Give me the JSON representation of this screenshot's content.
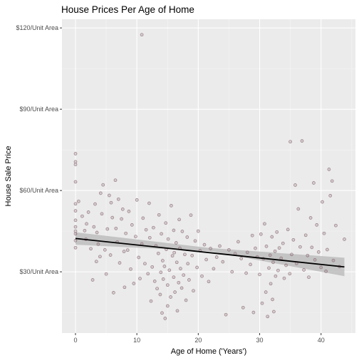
{
  "chart_data": {
    "type": "scatter",
    "title": "House Prices Per Age of Home",
    "xlabel": "Age of Home ('Years')",
    "ylabel": "House Sale Price",
    "xlim": [
      -2.2,
      45.6
    ],
    "ylim": [
      7.4,
      123.2
    ],
    "x_ticks": [
      0,
      10,
      20,
      30,
      40
    ],
    "x_tick_labels": [
      "0",
      "10",
      "20",
      "30",
      "40"
    ],
    "y_ticks": [
      30,
      60,
      90,
      120
    ],
    "y_tick_labels": [
      "$30/Unit Area",
      "$60/Unit Area",
      "$90/Unit Area",
      "$120/Unit Area"
    ],
    "grid": true,
    "point_color": "#8b6b73",
    "trend_line": {
      "type": "linear",
      "x_range": [
        0,
        43.8
      ],
      "y_start": 42.3,
      "y_end": 31.8,
      "ci_lower_start": 40.0,
      "ci_upper_start": 44.6,
      "ci_lower_mid": 37.6,
      "ci_upper_mid": 38.8,
      "ci_lower_end": 28.4,
      "ci_upper_end": 35.2,
      "line_color": "#000000",
      "band_color": "#bdbdbd"
    },
    "points": [
      [
        0,
        73.6
      ],
      [
        0,
        70.6
      ],
      [
        0,
        69.6
      ],
      [
        0,
        63.2
      ],
      [
        0,
        55.1
      ],
      [
        0,
        52.5
      ],
      [
        0,
        46.6
      ],
      [
        0,
        45.0
      ],
      [
        0,
        44.0
      ],
      [
        0,
        41.5
      ],
      [
        0,
        38.9
      ],
      [
        0,
        49.0
      ],
      [
        0.5,
        56.0
      ],
      [
        1.1,
        50.5
      ],
      [
        1.5,
        45.2
      ],
      [
        1.7,
        42.0
      ],
      [
        1.8,
        47.7
      ],
      [
        2.1,
        52.0
      ],
      [
        2.5,
        38.5
      ],
      [
        2.8,
        27.0
      ],
      [
        3.0,
        46.6
      ],
      [
        3.2,
        55.0
      ],
      [
        3.4,
        33.8
      ],
      [
        3.5,
        44.5
      ],
      [
        3.7,
        40.2
      ],
      [
        4.0,
        35.6
      ],
      [
        4.1,
        59.0
      ],
      [
        4.3,
        51.4
      ],
      [
        4.5,
        62.1
      ],
      [
        4.8,
        38.1
      ],
      [
        5.0,
        29.2
      ],
      [
        5.2,
        45.8
      ],
      [
        5.5,
        58.2
      ],
      [
        5.7,
        36.2
      ],
      [
        5.8,
        55.5
      ],
      [
        6.0,
        50.0
      ],
      [
        6.2,
        22.3
      ],
      [
        6.5,
        63.8
      ],
      [
        6.6,
        46.0
      ],
      [
        6.8,
        41.0
      ],
      [
        7.0,
        56.8
      ],
      [
        7.2,
        33.3
      ],
      [
        7.5,
        49.5
      ],
      [
        7.7,
        53.1
      ],
      [
        7.9,
        37.5
      ],
      [
        8.0,
        24.3
      ],
      [
        8.2,
        44.2
      ],
      [
        8.5,
        38.0
      ],
      [
        8.7,
        52.3
      ],
      [
        9.0,
        31.0
      ],
      [
        9.2,
        47.3
      ],
      [
        9.5,
        25.7
      ],
      [
        9.8,
        43.0
      ],
      [
        10.0,
        56.5
      ],
      [
        10.3,
        35.3
      ],
      [
        10.5,
        27.5
      ],
      [
        10.8,
        40.3
      ],
      [
        10.8,
        117.5
      ],
      [
        11.0,
        49.8
      ],
      [
        11.3,
        33.0
      ],
      [
        11.5,
        45.5
      ],
      [
        11.8,
        29.3
      ],
      [
        12.0,
        55.3
      ],
      [
        12.1,
        42.6
      ],
      [
        12.3,
        19.2
      ],
      [
        12.5,
        31.8
      ],
      [
        12.7,
        46.3
      ],
      [
        12.9,
        26.5
      ],
      [
        13.1,
        39.6
      ],
      [
        13.3,
        23.8
      ],
      [
        13.5,
        36.8
      ],
      [
        13.6,
        51.0
      ],
      [
        13.8,
        21.6
      ],
      [
        13.9,
        29.8
      ],
      [
        14.0,
        44.0
      ],
      [
        14.1,
        14.8
      ],
      [
        14.2,
        34.1
      ],
      [
        14.3,
        27.3
      ],
      [
        14.5,
        32.0
      ],
      [
        14.6,
        12.8
      ],
      [
        14.7,
        48.0
      ],
      [
        14.8,
        38.3
      ],
      [
        15.0,
        25.1
      ],
      [
        15.0,
        17.4
      ],
      [
        15.1,
        42.1
      ],
      [
        15.3,
        30.6
      ],
      [
        15.5,
        20.7
      ],
      [
        15.6,
        54.4
      ],
      [
        15.8,
        35.9
      ],
      [
        16.0,
        28.0
      ],
      [
        16.0,
        45.3
      ],
      [
        16.1,
        37.1
      ],
      [
        16.2,
        22.5
      ],
      [
        16.4,
        40.7
      ],
      [
        16.5,
        33.5
      ],
      [
        16.6,
        15.6
      ],
      [
        16.8,
        26.0
      ],
      [
        16.9,
        49.3
      ],
      [
        17.0,
        38.7
      ],
      [
        17.1,
        31.2
      ],
      [
        17.3,
        24.0
      ],
      [
        17.4,
        44.9
      ],
      [
        17.6,
        28.8
      ],
      [
        17.8,
        36.4
      ],
      [
        18.0,
        19.5
      ],
      [
        18.2,
        42.8
      ],
      [
        18.3,
        33.0
      ],
      [
        18.5,
        27.0
      ],
      [
        18.8,
        50.9
      ],
      [
        19.0,
        36.0
      ],
      [
        19.2,
        23.0
      ],
      [
        19.5,
        41.4
      ],
      [
        19.8,
        31.6
      ],
      [
        20.0,
        45.0
      ],
      [
        20.3,
        37.8
      ],
      [
        20.6,
        28.4
      ],
      [
        21.0,
        40.0
      ],
      [
        21.3,
        34.5
      ],
      [
        21.7,
        26.4
      ],
      [
        22.0,
        38.6
      ],
      [
        22.5,
        31.1
      ],
      [
        23.0,
        35.4
      ],
      [
        23.5,
        39.5
      ],
      [
        24.0,
        33.7
      ],
      [
        24.5,
        14.2
      ],
      [
        25.0,
        38.1
      ],
      [
        25.5,
        30.0
      ],
      [
        26.0,
        36.7
      ],
      [
        26.5,
        41.1
      ],
      [
        27.0,
        34.9
      ],
      [
        27.3,
        16.8
      ],
      [
        27.8,
        29.5
      ],
      [
        28.0,
        37.2
      ],
      [
        28.5,
        32.7
      ],
      [
        28.8,
        43.4
      ],
      [
        29.0,
        15.0
      ],
      [
        29.3,
        38.7
      ],
      [
        29.6,
        35.5
      ],
      [
        30.0,
        29.0
      ],
      [
        30.2,
        43.9
      ],
      [
        30.4,
        18.4
      ],
      [
        30.6,
        34.8
      ],
      [
        30.8,
        47.7
      ],
      [
        31.0,
        22.5
      ],
      [
        31.1,
        39.4
      ],
      [
        31.3,
        13.5
      ],
      [
        31.5,
        31.4
      ],
      [
        31.7,
        36.1
      ],
      [
        31.8,
        25.6
      ],
      [
        32.0,
        42.9
      ],
      [
        32.1,
        19.8
      ],
      [
        32.2,
        33.5
      ],
      [
        32.3,
        15.3
      ],
      [
        32.5,
        37.6
      ],
      [
        32.6,
        28.4
      ],
      [
        32.8,
        44.7
      ],
      [
        33.0,
        30.5
      ],
      [
        33.2,
        38.8
      ],
      [
        33.5,
        35.0
      ],
      [
        33.8,
        40.5
      ],
      [
        34.0,
        27.6
      ],
      [
        34.3,
        32.4
      ],
      [
        34.6,
        45.6
      ],
      [
        34.9,
        29.3
      ],
      [
        35.0,
        78.0
      ],
      [
        35.2,
        36.4
      ],
      [
        35.5,
        41.8
      ],
      [
        35.8,
        62.0
      ],
      [
        36.0,
        33.1
      ],
      [
        36.3,
        53.2
      ],
      [
        36.6,
        39.2
      ],
      [
        36.9,
        78.3
      ],
      [
        37.2,
        30.7
      ],
      [
        37.5,
        43.5
      ],
      [
        37.8,
        36.0
      ],
      [
        38.0,
        28.0
      ],
      [
        38.3,
        49.9
      ],
      [
        38.5,
        39.0
      ],
      [
        38.8,
        62.8
      ],
      [
        39.0,
        34.4
      ],
      [
        39.3,
        47.3
      ],
      [
        39.6,
        37.3
      ],
      [
        40.0,
        31.6
      ],
      [
        40.2,
        55.8
      ],
      [
        40.5,
        44.2
      ],
      [
        40.8,
        30.2
      ],
      [
        41.0,
        38.2
      ],
      [
        41.3,
        67.8
      ],
      [
        41.5,
        58.1
      ],
      [
        41.8,
        63.5
      ],
      [
        42.0,
        34.2
      ],
      [
        42.4,
        47.1
      ],
      [
        43.0,
        31.9
      ],
      [
        43.8,
        42.0
      ]
    ]
  }
}
